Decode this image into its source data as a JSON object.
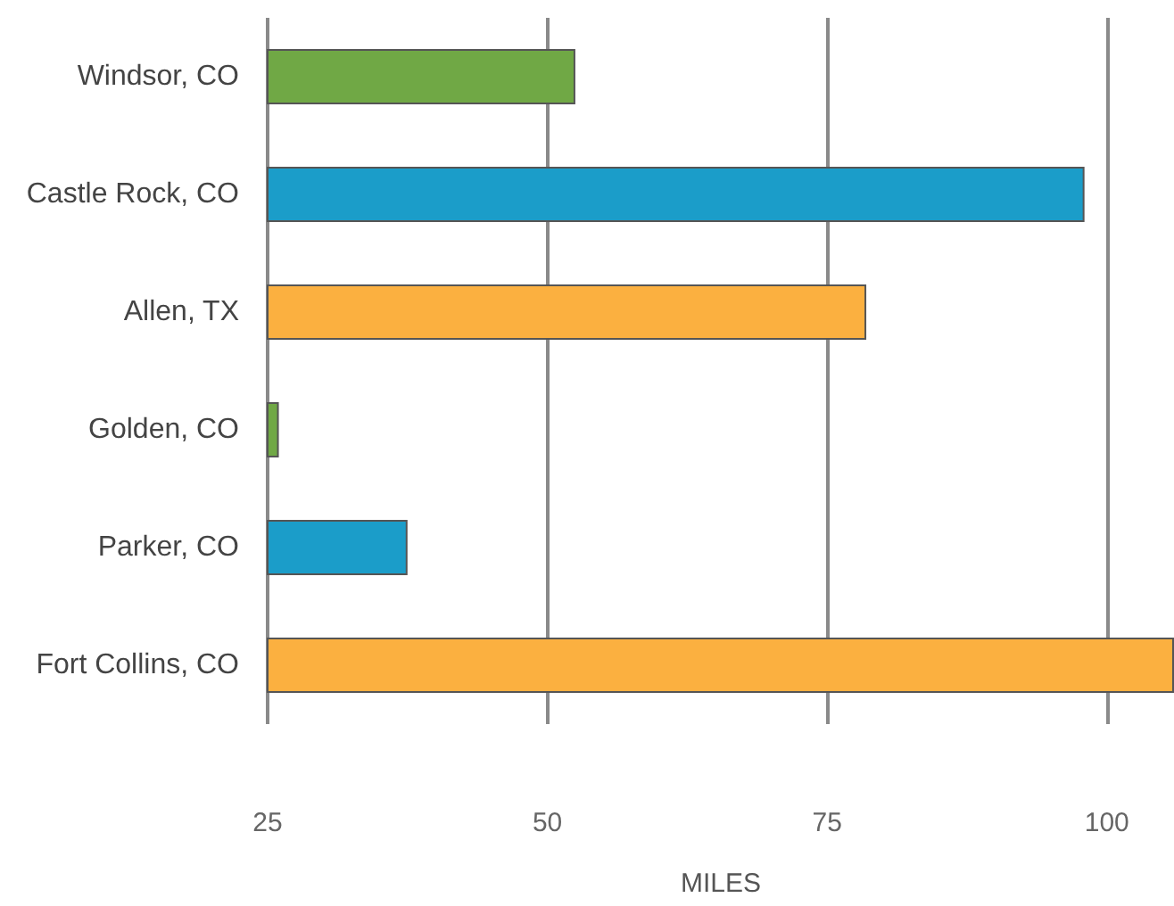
{
  "chart_data": {
    "type": "bar",
    "orientation": "horizontal",
    "xlabel": "MILES",
    "categories": [
      "Windsor, CO",
      "Castle Rock, CO",
      "Allen, TX",
      "Golden, CO",
      "Parker, CO",
      "Fort Collins, CO"
    ],
    "values": [
      52.5,
      98,
      78.5,
      26,
      37.5,
      106
    ],
    "colors": [
      "#70a845",
      "#1b9dc9",
      "#fbb040",
      "#70a845",
      "#1b9dc9",
      "#fbb040"
    ],
    "xlim": [
      25,
      106
    ],
    "xticks": [
      25,
      50,
      75,
      100
    ],
    "grid": "x"
  }
}
